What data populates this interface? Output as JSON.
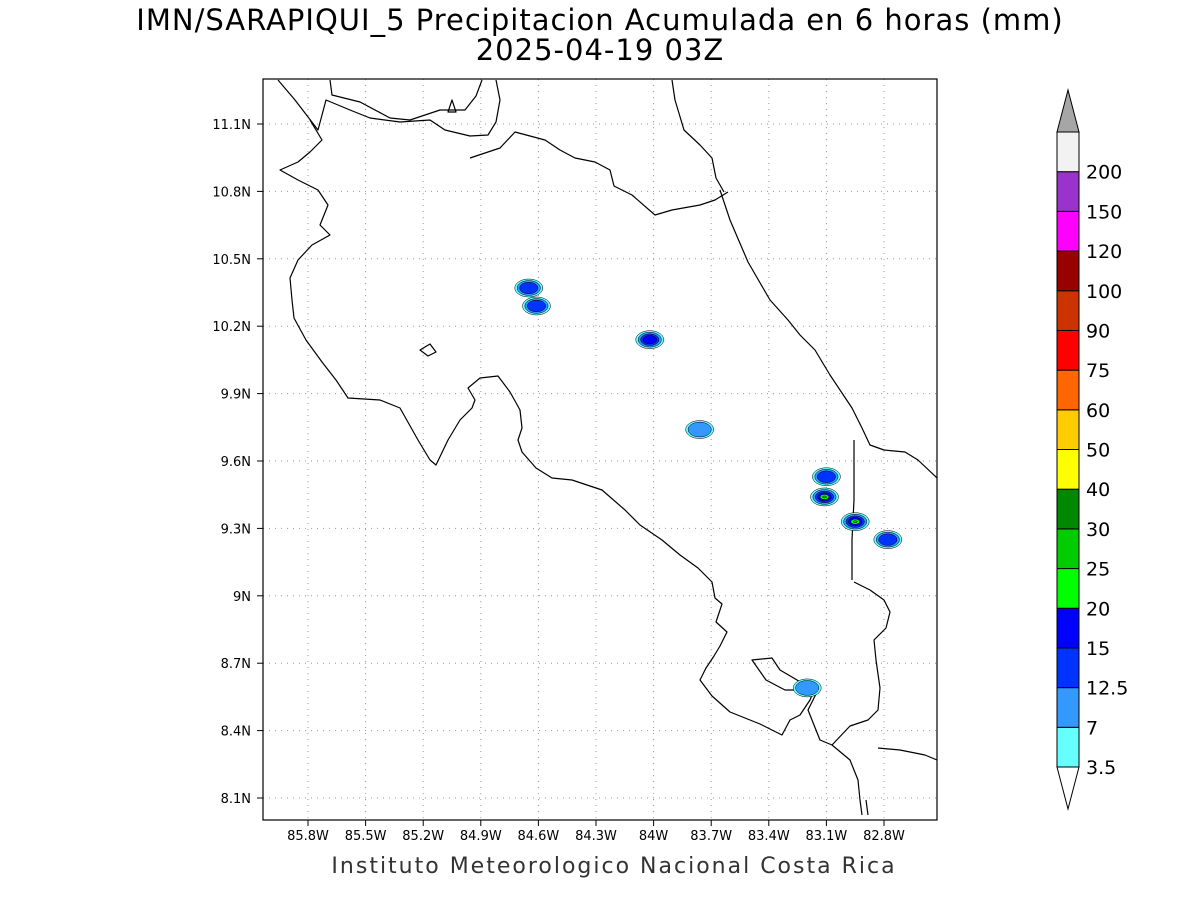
{
  "title": "IMN/SARAPIQUI_5 Precipitacion Acumulada en 6 horas (mm)",
  "subtitle": "2025-04-19 03Z",
  "footer": "Instituto Meteorologico Nacional Costa Rica",
  "lon_ticks": [
    "85.8W",
    "85.5W",
    "85.2W",
    "84.9W",
    "84.6W",
    "84.3W",
    "84W",
    "83.7W",
    "83.4W",
    "83.1W",
    "82.8W"
  ],
  "lat_ticks": [
    "11.1N",
    "10.8N",
    "10.5N",
    "10.2N",
    "9.9N",
    "9.6N",
    "9.3N",
    "9N",
    "8.7N",
    "8.4N",
    "8.1N"
  ],
  "colorbar": {
    "labels": [
      "3.5",
      "7",
      "12.5",
      "15",
      "20",
      "25",
      "30",
      "40",
      "50",
      "60",
      "75",
      "90",
      "100",
      "120",
      "150",
      "200"
    ],
    "colors": [
      "#66ffff",
      "#3399ff",
      "#0033ff",
      "#0000ff",
      "#00ff00",
      "#00cc00",
      "#008800",
      "#ffff00",
      "#ffcc00",
      "#ff6600",
      "#ff0000",
      "#cc3300",
      "#990000",
      "#ff00ff",
      "#9933cc",
      "#f2f2f2"
    ],
    "over_color": "#a6a6a6"
  },
  "precip_cells": [
    {
      "lon": -84.65,
      "lat": 10.37,
      "level": 2
    },
    {
      "lon": -84.61,
      "lat": 10.29,
      "level": 2
    },
    {
      "lon": -84.02,
      "lat": 10.14,
      "level": 3
    },
    {
      "lon": -83.76,
      "lat": 9.74,
      "level": 1
    },
    {
      "lon": -83.11,
      "lat": 9.44,
      "level": 5
    },
    {
      "lon": -82.95,
      "lat": 9.33,
      "level": 5
    },
    {
      "lon": -82.78,
      "lat": 9.25,
      "level": 2
    },
    {
      "lon": -83.1,
      "lat": 9.53,
      "level": 2
    },
    {
      "lon": -83.2,
      "lat": 8.59,
      "level": 1
    }
  ]
}
